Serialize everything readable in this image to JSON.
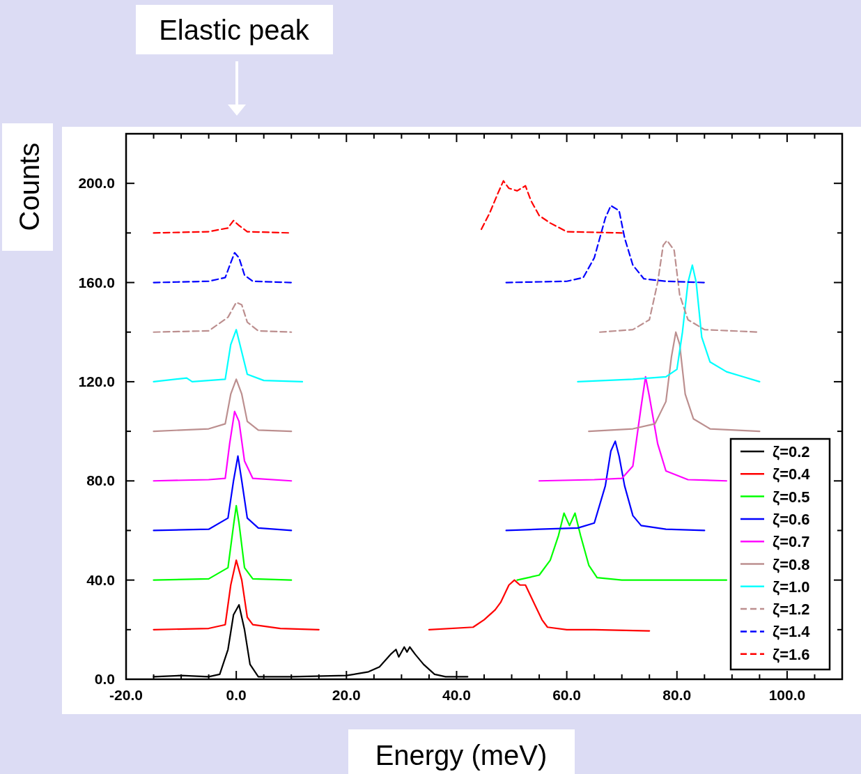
{
  "chart_data": {
    "type": "line",
    "xlabel": "Energy (meV)",
    "ylabel": "Counts",
    "annotations": [
      "Elastic peak"
    ],
    "xlim": [
      -20,
      110
    ],
    "ylim": [
      0,
      220
    ],
    "xticks": [
      {
        "value": -20,
        "label": "-20.0"
      },
      {
        "value": -15,
        "label": null
      },
      {
        "value": -10,
        "label": null
      },
      {
        "value": -5,
        "label": null
      },
      {
        "value": 0,
        "label": "0.0"
      },
      {
        "value": 5,
        "label": null
      },
      {
        "value": 10,
        "label": null
      },
      {
        "value": 15,
        "label": null
      },
      {
        "value": 20,
        "label": "20.0"
      },
      {
        "value": 25,
        "label": null
      },
      {
        "value": 30,
        "label": null
      },
      {
        "value": 35,
        "label": null
      },
      {
        "value": 40,
        "label": "40.0"
      },
      {
        "value": 45,
        "label": null
      },
      {
        "value": 50,
        "label": null
      },
      {
        "value": 55,
        "label": null
      },
      {
        "value": 60,
        "label": "60.0"
      },
      {
        "value": 65,
        "label": null
      },
      {
        "value": 70,
        "label": null
      },
      {
        "value": 75,
        "label": null
      },
      {
        "value": 80,
        "label": "80.0"
      },
      {
        "value": 85,
        "label": null
      },
      {
        "value": 90,
        "label": null
      },
      {
        "value": 95,
        "label": null
      },
      {
        "value": 100,
        "label": "100.0"
      },
      {
        "value": 105,
        "label": null
      }
    ],
    "yticks": [
      {
        "value": 0,
        "label": "0.0"
      },
      {
        "value": 20,
        "label": null
      },
      {
        "value": 40,
        "label": "40.0"
      },
      {
        "value": 60,
        "label": null
      },
      {
        "value": 80,
        "label": "80.0"
      },
      {
        "value": 100,
        "label": null
      },
      {
        "value": 120,
        "label": "120.0"
      },
      {
        "value": 140,
        "label": null
      },
      {
        "value": 160,
        "label": "160.0"
      },
      {
        "value": 180,
        "label": null
      },
      {
        "value": 200,
        "label": "200.0"
      }
    ],
    "grid": false,
    "legend": "bottom right",
    "marker": "none",
    "series": [
      {
        "name": "ζ=0.2",
        "color": "#000000",
        "line_style": "solid",
        "x": [
          -15,
          -10,
          -5,
          -3,
          -1.5,
          -0.5,
          0.5,
          1.5,
          2.5,
          4,
          10,
          20,
          24,
          26,
          28,
          29,
          29.5,
          30.5,
          31,
          31.5,
          32.5,
          34,
          36,
          38,
          42
        ],
        "values": [
          1,
          1.5,
          1,
          2,
          12,
          26,
          30,
          20,
          6,
          1,
          1,
          1.5,
          3,
          5,
          10,
          12,
          9,
          13,
          11,
          13,
          10,
          6,
          2,
          1,
          1
        ]
      },
      {
        "name": "ζ=0.4",
        "color": "#ff0000",
        "line_style": "solid",
        "x": [
          -15,
          -5,
          -2,
          -1,
          0,
          1,
          2,
          3,
          8,
          15,
          null,
          35,
          43,
          45,
          47,
          48,
          49.5,
          50.5,
          51.5,
          52.5,
          54,
          55.5,
          56.5,
          60,
          65,
          75
        ],
        "values": [
          20,
          20.5,
          22,
          38,
          48,
          40,
          25,
          22,
          20.5,
          20,
          null,
          20,
          21,
          24,
          28,
          31,
          38,
          40,
          38,
          38,
          31,
          24,
          21,
          20,
          20,
          19.5
        ]
      },
      {
        "name": "ζ=0.5",
        "color": "#00ff00",
        "line_style": "solid",
        "x": [
          -15,
          -5,
          -1.5,
          -0.5,
          0,
          0.5,
          1.5,
          3,
          10,
          null,
          51,
          53,
          55,
          57,
          58.5,
          59.5,
          60.5,
          61.5,
          62.5,
          64,
          65.5,
          70,
          80,
          89
        ],
        "values": [
          40,
          40.5,
          45,
          62,
          70,
          63,
          45,
          40.5,
          40,
          null,
          40,
          41,
          42,
          48,
          58,
          67,
          62,
          67,
          58,
          46,
          41,
          40,
          40,
          40
        ]
      },
      {
        "name": "ζ=0.6",
        "color": "#0000ff",
        "line_style": "solid",
        "x": [
          -15,
          -5,
          -1.5,
          -0.5,
          0.3,
          1,
          2,
          4,
          10,
          null,
          49,
          55,
          62,
          65,
          67,
          68,
          68.8,
          69.5,
          70.5,
          72,
          73.5,
          78,
          85
        ],
        "values": [
          60,
          60.5,
          65,
          80,
          90,
          80,
          65,
          61,
          60,
          null,
          60,
          60.5,
          61,
          63,
          78,
          92,
          96,
          90,
          78,
          66,
          62,
          60.5,
          60
        ]
      },
      {
        "name": "ζ=0.7",
        "color": "#ff00ff",
        "line_style": "solid",
        "x": [
          -15,
          -5,
          -2,
          -1.2,
          -0.3,
          0.5,
          1.5,
          3,
          10,
          null,
          55,
          65,
          70,
          72,
          73.5,
          74.3,
          75,
          76.5,
          78,
          82,
          89
        ],
        "values": [
          80,
          80.5,
          81,
          95,
          108,
          104,
          88,
          81,
          80,
          null,
          80,
          80.5,
          81,
          86,
          110,
          122,
          114,
          95,
          84,
          80.5,
          80
        ]
      },
      {
        "name": "ζ=0.8",
        "color": "#bc8f8f",
        "line_style": "solid",
        "x": [
          -15,
          -5,
          -2,
          -1,
          0,
          1,
          2,
          4,
          10,
          null,
          64,
          72,
          76,
          78,
          79,
          79.8,
          80.5,
          81.5,
          83,
          86,
          95
        ],
        "values": [
          100,
          101,
          103,
          115,
          121,
          115,
          104,
          100.5,
          100,
          null,
          100,
          101,
          103,
          112,
          130,
          140,
          135,
          115,
          105,
          101,
          100
        ]
      },
      {
        "name": "ζ=1.0",
        "color": "#00ffff",
        "line_style": "solid",
        "x": [
          -15,
          -9,
          -8,
          -2,
          -1,
          0,
          1,
          2,
          5,
          12,
          null,
          62,
          72,
          78,
          80,
          81,
          82,
          82.8,
          83.5,
          84.5,
          86,
          89,
          92,
          95
        ],
        "values": [
          120,
          121.5,
          120,
          121,
          135,
          141,
          132,
          123,
          120.5,
          120,
          null,
          120,
          121,
          122,
          125,
          140,
          160,
          167,
          160,
          138,
          128,
          124,
          122,
          120
        ]
      },
      {
        "name": "ζ=1.2",
        "color": "#bc8f8f",
        "line_style": "dashed",
        "x": [
          -15,
          -5,
          -1.5,
          0,
          1,
          2,
          4,
          10,
          null,
          66,
          72,
          75,
          76.5,
          77.5,
          78.2,
          79.5,
          80.5,
          82,
          85,
          95
        ],
        "values": [
          140,
          140.5,
          146,
          152,
          151,
          144,
          140.5,
          140,
          null,
          140,
          141,
          145,
          160,
          175,
          177,
          173,
          155,
          145,
          141,
          140
        ]
      },
      {
        "name": "ζ=1.4",
        "color": "#0000ff",
        "line_style": "dashed",
        "x": [
          -15,
          -5,
          -2,
          -1,
          -0.3,
          0.5,
          1.5,
          3,
          10,
          null,
          49,
          60,
          63,
          65,
          67,
          68,
          69.5,
          70.5,
          72,
          74,
          78,
          85
        ],
        "values": [
          160,
          160.5,
          162,
          168,
          172,
          170,
          163,
          160.5,
          160,
          null,
          160,
          160.5,
          162,
          170,
          186,
          191,
          189,
          178,
          167,
          161.5,
          160.5,
          160
        ]
      },
      {
        "name": "ζ=1.6",
        "color": "#ff0000",
        "line_style": "dashed",
        "x": [
          -15,
          -5,
          -1.5,
          -0.5,
          0.5,
          2,
          10,
          null,
          44.5,
          46,
          47.5,
          48.5,
          49.5,
          51,
          52.5,
          53.5,
          55,
          57,
          60,
          70
        ],
        "values": [
          180,
          180.5,
          182,
          185,
          183,
          180.5,
          180,
          null,
          181.5,
          188,
          196,
          201,
          198,
          197,
          199,
          193,
          187,
          184,
          180.5,
          180
        ]
      }
    ]
  }
}
